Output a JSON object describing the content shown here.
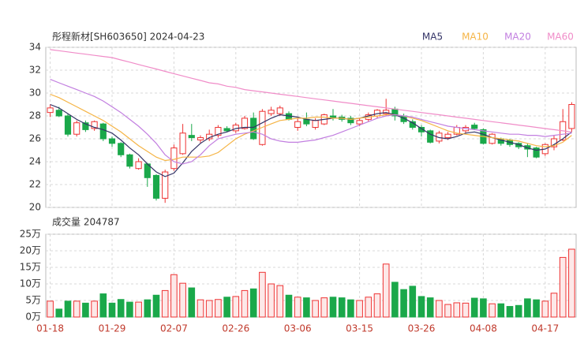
{
  "chart_data": [
    {
      "type": "candlestick",
      "title": "彤程新材[SH603650] 2024-04-23",
      "categories": [
        "01-18",
        null,
        null,
        null,
        null,
        null,
        null,
        "01-29",
        null,
        null,
        null,
        null,
        null,
        null,
        "02-07",
        null,
        null,
        null,
        null,
        null,
        null,
        "02-26",
        null,
        null,
        null,
        null,
        null,
        null,
        "03-06",
        null,
        null,
        null,
        null,
        null,
        null,
        "03-15",
        null,
        null,
        null,
        null,
        null,
        null,
        "03-26",
        null,
        null,
        null,
        null,
        null,
        null,
        "04-08",
        null,
        null,
        null,
        null,
        null,
        null,
        "04-17",
        null,
        null,
        null
      ],
      "open": [
        28.3,
        28.5,
        28.0,
        26.4,
        27.4,
        26.9,
        27.3,
        26.0,
        25.6,
        24.6,
        23.4,
        23.8,
        22.8,
        20.8,
        23.4,
        24.7,
        26.3,
        25.9,
        26.0,
        26.3,
        26.9,
        26.7,
        26.9,
        27.8,
        25.5,
        28.2,
        28.2,
        28.2,
        27.0,
        27.7,
        27.0,
        27.3,
        28.0,
        27.9,
        27.8,
        27.3,
        27.7,
        28.0,
        28.2,
        28.6,
        28.0,
        27.5,
        27.0,
        26.7,
        25.8,
        26.1,
        26.4,
        26.7,
        27.2,
        26.8,
        25.6,
        26.0,
        25.9,
        25.6,
        25.4,
        25.2,
        24.7,
        25.3,
        25.9,
        26.9
      ],
      "high": [
        29.0,
        28.8,
        28.2,
        27.6,
        27.6,
        27.6,
        27.4,
        26.2,
        25.7,
        24.7,
        24.3,
        23.9,
        22.9,
        23.3,
        25.5,
        27.3,
        27.3,
        26.3,
        26.8,
        27.2,
        27.1,
        27.4,
        28.0,
        28.3,
        28.6,
        28.8,
        28.9,
        28.4,
        27.8,
        28.3,
        27.8,
        28.2,
        28.6,
        28.1,
        28.0,
        27.8,
        28.3,
        28.6,
        29.5,
        28.8,
        28.2,
        27.7,
        27.2,
        26.8,
        26.7,
        26.6,
        27.2,
        27.2,
        27.4,
        26.9,
        26.5,
        26.1,
        26.0,
        25.7,
        25.6,
        25.3,
        25.6,
        26.3,
        28.6,
        29.2
      ],
      "low": [
        27.9,
        27.9,
        26.2,
        26.2,
        26.6,
        26.7,
        25.8,
        25.3,
        24.4,
        23.4,
        23.3,
        21.8,
        20.6,
        20.4,
        23.2,
        24.6,
        25.8,
        25.6,
        25.8,
        26.1,
        26.6,
        26.5,
        26.8,
        25.9,
        25.4,
        28.0,
        28.0,
        27.6,
        26.7,
        27.1,
        26.8,
        27.2,
        27.6,
        27.5,
        27.2,
        27.1,
        27.5,
        27.8,
        28.0,
        27.6,
        27.3,
        26.8,
        26.2,
        25.6,
        25.6,
        25.9,
        26.3,
        26.5,
        26.8,
        25.5,
        25.5,
        25.4,
        25.3,
        25.1,
        24.4,
        24.3,
        24.5,
        25.0,
        25.8,
        26.6
      ],
      "close": [
        28.7,
        28.0,
        26.4,
        27.4,
        26.8,
        27.5,
        26.0,
        25.6,
        24.6,
        23.6,
        24.0,
        22.6,
        20.8,
        23.1,
        25.2,
        26.5,
        26.1,
        26.1,
        26.4,
        27.0,
        26.7,
        27.2,
        27.8,
        26.0,
        28.4,
        28.5,
        28.7,
        27.7,
        27.5,
        27.3,
        27.6,
        28.1,
        27.8,
        27.7,
        27.4,
        27.6,
        28.1,
        28.5,
        28.5,
        28.0,
        27.5,
        27.0,
        26.6,
        25.7,
        26.5,
        26.4,
        27.0,
        27.0,
        26.9,
        25.6,
        26.4,
        25.6,
        25.5,
        25.3,
        25.1,
        24.4,
        25.5,
        26.0,
        27.5,
        29.0
      ],
      "up_color": "#ee3333",
      "down_color": "#1aa84a",
      "series": [
        {
          "name": "MA5",
          "color": "#333366",
          "values": [
            29.0,
            28.7,
            28.2,
            27.7,
            27.3,
            27.0,
            26.8,
            26.5,
            25.9,
            25.2,
            24.6,
            23.8,
            23.1,
            22.7,
            23.0,
            23.9,
            24.9,
            25.6,
            26.1,
            26.4,
            26.6,
            26.9,
            27.0,
            27.0,
            27.4,
            27.8,
            28.1,
            28.0,
            27.9,
            27.7,
            27.6,
            27.7,
            27.8,
            27.8,
            27.7,
            27.8,
            28.0,
            28.2,
            28.3,
            28.1,
            27.8,
            27.4,
            26.9,
            26.4,
            26.1,
            26.0,
            26.2,
            26.5,
            26.6,
            26.4,
            26.1,
            25.9,
            25.7,
            25.5,
            25.2,
            25.0,
            25.1,
            25.5,
            26.0,
            26.6
          ]
        },
        {
          "name": "MA10",
          "color": "#f5b445",
          "values": [
            29.9,
            29.6,
            29.2,
            28.8,
            28.4,
            28.0,
            27.6,
            27.1,
            26.6,
            26.0,
            25.4,
            24.9,
            24.4,
            24.1,
            24.2,
            24.4,
            24.4,
            24.4,
            24.5,
            24.8,
            25.4,
            26.0,
            26.4,
            26.7,
            27.0,
            27.3,
            27.6,
            27.7,
            27.8,
            27.8,
            27.9,
            27.9,
            27.8,
            27.8,
            27.7,
            27.8,
            27.9,
            28.0,
            28.1,
            28.1,
            28.0,
            27.8,
            27.6,
            27.3,
            27.0,
            26.7,
            26.5,
            26.4,
            26.3,
            26.2,
            26.1,
            26.0,
            25.9,
            25.8,
            25.6,
            25.4,
            25.3,
            25.4,
            25.7,
            26.3
          ]
        },
        {
          "name": "MA20",
          "color": "#c27fe0",
          "values": [
            31.2,
            30.9,
            30.6,
            30.3,
            30.0,
            29.7,
            29.3,
            28.8,
            28.3,
            27.7,
            27.1,
            26.4,
            25.6,
            24.6,
            24.0,
            23.8,
            24.0,
            24.6,
            25.4,
            26.0,
            26.2,
            26.4,
            26.5,
            26.6,
            26.4,
            26.0,
            25.8,
            25.7,
            25.7,
            25.8,
            25.9,
            26.1,
            26.3,
            26.6,
            26.9,
            27.2,
            27.5,
            27.8,
            28.0,
            28.1,
            28.0,
            27.9,
            27.7,
            27.5,
            27.3,
            27.1,
            27.0,
            26.9,
            26.8,
            26.7,
            26.6,
            26.5,
            26.4,
            26.4,
            26.3,
            26.3,
            26.2,
            26.3,
            26.4,
            26.5
          ]
        },
        {
          "name": "MA60",
          "color": "#f08cc8",
          "values": [
            33.8,
            33.7,
            33.6,
            33.5,
            33.4,
            33.3,
            33.2,
            33.1,
            32.9,
            32.7,
            32.5,
            32.3,
            32.1,
            31.9,
            31.7,
            31.5,
            31.3,
            31.1,
            30.9,
            30.8,
            30.6,
            30.5,
            30.3,
            30.2,
            30.1,
            30.0,
            29.9,
            29.8,
            29.7,
            29.6,
            29.5,
            29.4,
            29.3,
            29.2,
            29.1,
            29.0,
            28.9,
            28.8,
            28.7,
            28.6,
            28.5,
            28.4,
            28.3,
            28.2,
            28.1,
            28.0,
            27.9,
            27.8,
            27.7,
            27.6,
            27.5,
            27.4,
            27.3,
            27.2,
            27.1,
            27.0,
            26.9,
            26.8,
            26.7,
            26.6
          ]
        }
      ],
      "ylim": [
        20,
        34
      ],
      "yticks": [
        20,
        22,
        24,
        26,
        28,
        30,
        32,
        34
      ],
      "grid": true
    },
    {
      "type": "bar",
      "title": "成交量 204787",
      "values": [
        4.8,
        2.4,
        4.8,
        4.8,
        4.2,
        4.8,
        7.0,
        4.2,
        5.3,
        4.5,
        4.5,
        5.2,
        6.6,
        8.0,
        12.8,
        10.2,
        8.8,
        5.2,
        5.0,
        5.3,
        6.0,
        6.2,
        8.0,
        8.5,
        13.5,
        10.0,
        9.5,
        6.6,
        6.0,
        5.8,
        5.0,
        5.8,
        6.0,
        5.8,
        5.2,
        5.0,
        6.0,
        7.0,
        16.0,
        10.5,
        8.3,
        9.3,
        6.2,
        5.8,
        5.0,
        3.8,
        4.3,
        4.2,
        5.7,
        5.5,
        4.0,
        4.0,
        3.2,
        3.5,
        5.5,
        5.2,
        4.8,
        7.2,
        18.0,
        20.4787
      ],
      "ylim": [
        0,
        25
      ],
      "yticks": [
        {
          "value": 0,
          "label": "0万"
        },
        {
          "value": 5,
          "label": "5万"
        },
        {
          "value": 10,
          "label": "10万"
        },
        {
          "value": 15,
          "label": "15万"
        },
        {
          "value": 20,
          "label": "20万"
        },
        {
          "value": 25,
          "label": "25万"
        }
      ],
      "grid": true
    }
  ]
}
